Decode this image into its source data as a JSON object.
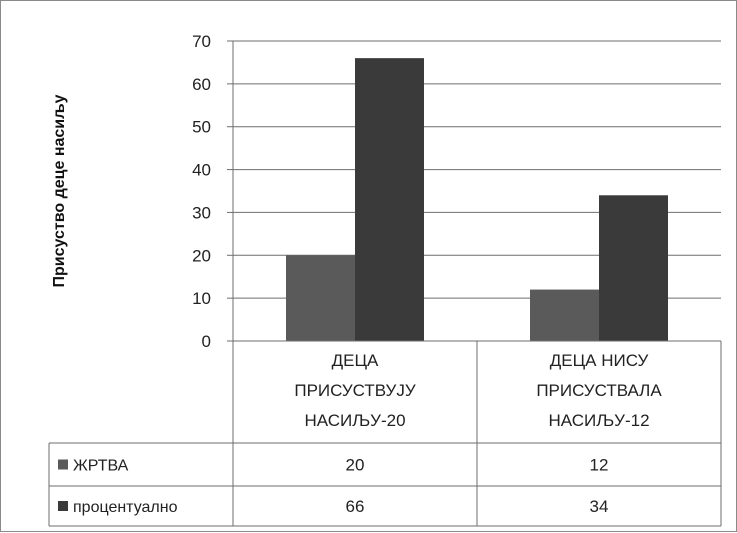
{
  "chart_data": {
    "type": "bar",
    "title": "",
    "xlabel": "",
    "ylabel": "Присуство деце насиљу",
    "ylim": [
      0,
      70
    ],
    "yticks": [
      0,
      10,
      20,
      30,
      40,
      50,
      60,
      70
    ],
    "grid": true,
    "legend": "data table",
    "categories": [
      [
        "ДЕЦА",
        "ПРИСУСТВУЈУ",
        "НАСИЉУ-20"
      ],
      [
        "ДЕЦА НИСУ",
        "ПРИСУСТВАЛА",
        "НАСИЉУ-12"
      ]
    ],
    "series": [
      {
        "name": "ЖРТВА",
        "values": [
          20,
          12
        ],
        "color": "#5a5a5a"
      },
      {
        "name": "процентуално",
        "values": [
          66,
          34
        ],
        "color": "#3a3a3a"
      }
    ]
  }
}
